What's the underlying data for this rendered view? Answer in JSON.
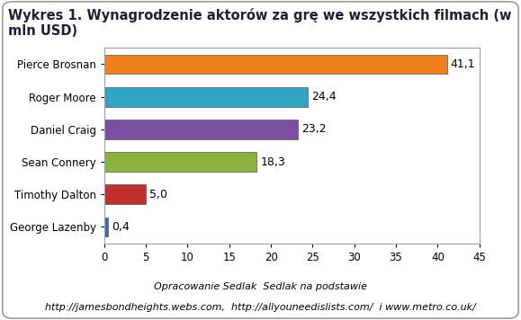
{
  "chart_data": {
    "type": "bar",
    "title": "Wykres 1. Wynagrodzenie aktorów za grę we wszystkich filmach (w mln USD)",
    "orientation": "horizontal",
    "categories": [
      "Pierce Brosnan",
      "Roger Moore",
      "Daniel Craig",
      "Sean Connery",
      "Timothy Dalton",
      "George Lazenby"
    ],
    "values": [
      41.1,
      24.4,
      23.2,
      18.3,
      5.0,
      0.4
    ],
    "value_labels": [
      "41,1",
      "24,4",
      "23,2",
      "18,3",
      "5,0",
      "0,4"
    ],
    "data_labels": true,
    "colors": [
      "#f07f1e",
      "#31a5c4",
      "#7a4fa0",
      "#8ab33f",
      "#c0302f",
      "#3a6fb0"
    ],
    "xlim": [
      0,
      45
    ],
    "xticks": [
      0,
      5,
      10,
      15,
      20,
      25,
      30,
      35,
      40,
      45
    ],
    "grid": false,
    "annotations": [
      "Opracowanie Sedlak  Sedlak na podstawie",
      "http://jamesbondheights.webs.com,  http://allyouneedislists.com/  i www.metro.co.uk/"
    ]
  }
}
